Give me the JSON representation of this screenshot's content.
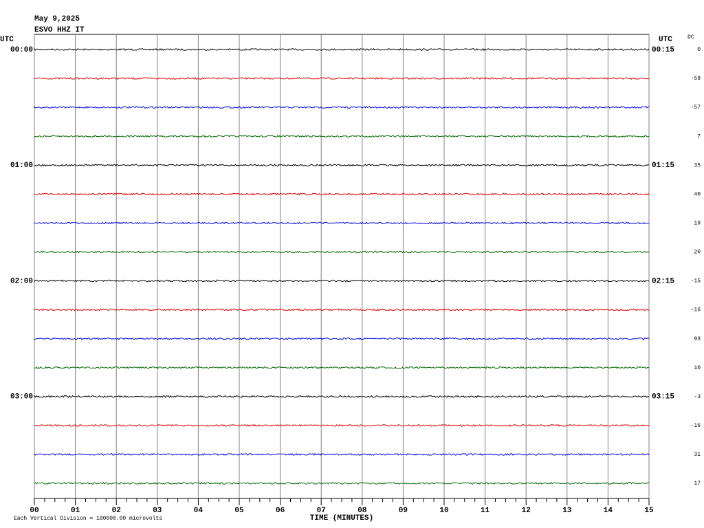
{
  "chart_data": {
    "type": "helicorder",
    "title": "May 9,2025",
    "subtitle": "ESVO HHZ IT",
    "left_axis_label": "UTC",
    "right_axis_label": "UTC",
    "dc_label": "DC",
    "left_labels": [
      "00:00",
      "01:00",
      "02:00",
      "03:00"
    ],
    "right_labels": [
      "00:15",
      "01:15",
      "02:15",
      "03:15"
    ],
    "dc_values": [
      0,
      -58,
      -57,
      7,
      35,
      40,
      19,
      20,
      -15,
      -16,
      93,
      10,
      -3,
      -16,
      31,
      17
    ],
    "colors": [
      "#000000",
      "#e00000",
      "#0000e0",
      "#006400"
    ],
    "xlabel": "TIME (MINUTES)",
    "xlim": [
      0,
      15
    ],
    "xticks": [
      {
        "value": 0,
        "label": "00"
      },
      {
        "value": 1,
        "label": "01"
      },
      {
        "value": 2,
        "label": "02"
      },
      {
        "value": 3,
        "label": "03"
      },
      {
        "value": 4,
        "label": "04"
      },
      {
        "value": 5,
        "label": "05"
      },
      {
        "value": 6,
        "label": "06"
      },
      {
        "value": 7,
        "label": "07"
      },
      {
        "value": 8,
        "label": "08"
      },
      {
        "value": 9,
        "label": "09"
      },
      {
        "value": 10,
        "label": "10"
      },
      {
        "value": 11,
        "label": "11"
      },
      {
        "value": 12,
        "label": "12"
      },
      {
        "value": 13,
        "label": "13"
      },
      {
        "value": 14,
        "label": "14"
      },
      {
        "value": 15,
        "label": "15"
      }
    ],
    "footer": "Each Vertical Division = 100000.00 microvolts",
    "grid": true
  }
}
